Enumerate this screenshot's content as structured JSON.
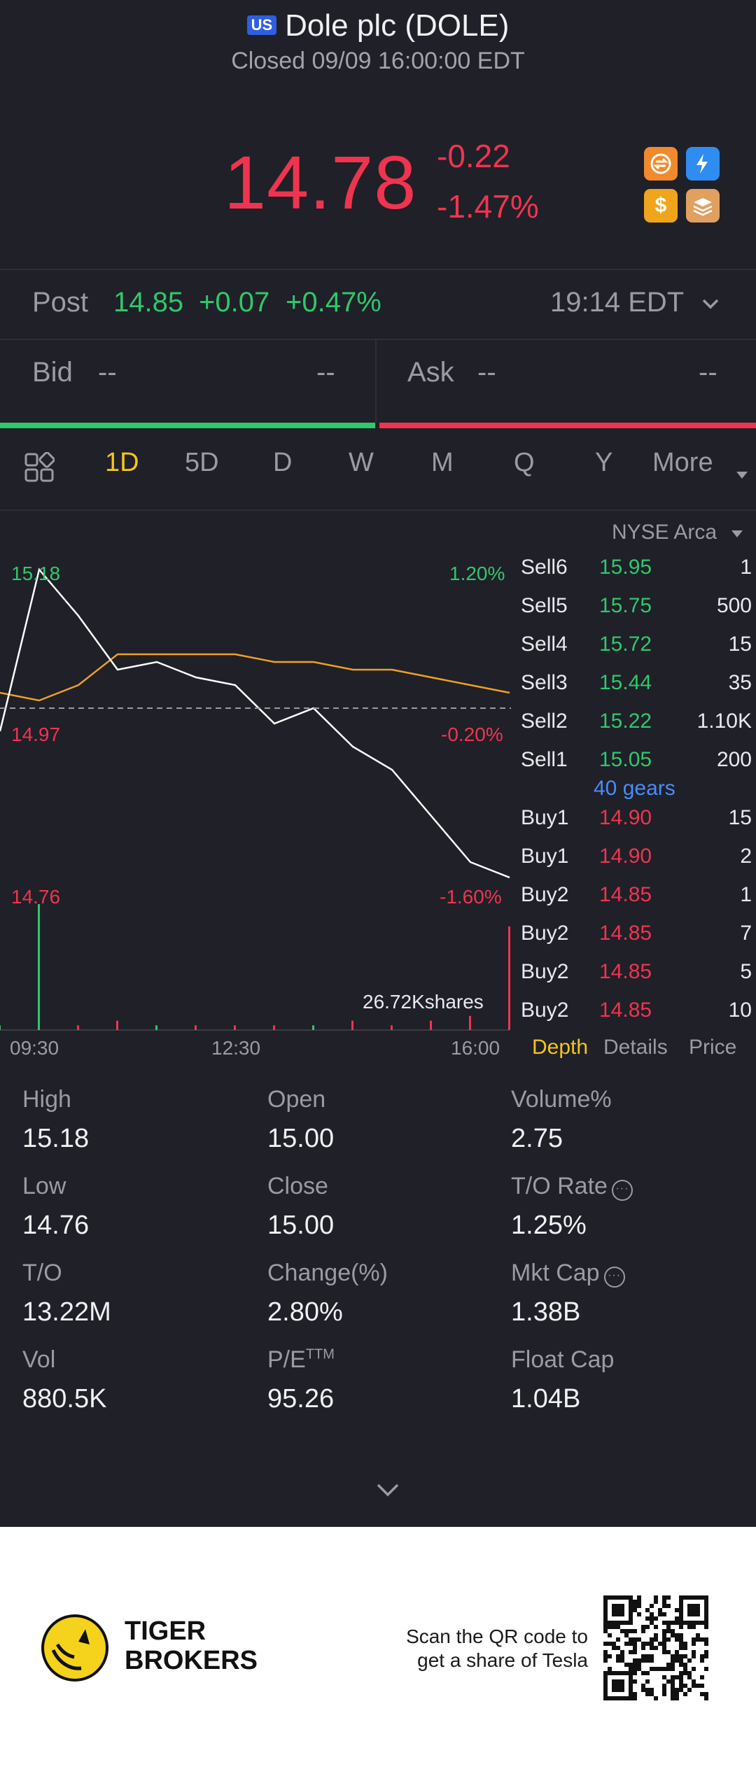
{
  "header": {
    "market_badge": "US",
    "title": "Dole plc (DOLE)",
    "status": "Closed 09/09 16:00:00 EDT"
  },
  "quote": {
    "price": "14.78",
    "change": "-0.22",
    "change_pct": "-1.47%"
  },
  "feature_icons": [
    "transfer-icon",
    "lightning-icon",
    "dollar-icon",
    "stack-icon"
  ],
  "post_market": {
    "label": "Post",
    "price": "14.85",
    "change": "+0.07",
    "change_pct": "+0.47%",
    "time": "19:14 EDT"
  },
  "bid": {
    "label": "Bid",
    "price": "--",
    "size": "--"
  },
  "ask": {
    "label": "Ask",
    "price": "--",
    "size": "--"
  },
  "bid_ask_ratio": 0.5,
  "tabs": [
    "1D",
    "5D",
    "D",
    "W",
    "M",
    "Q",
    "Y",
    "More"
  ],
  "active_tab": "1D",
  "exchange": "NYSE Arca",
  "chart_labels": {
    "high": "15.18",
    "high_pct": "1.20%",
    "mid": "14.97",
    "mid_pct": "-0.20%",
    "low": "14.76",
    "low_pct": "-1.60%",
    "volume": "26.72Kshares",
    "time_start": "09:30",
    "time_mid": "12:30",
    "time_end": "16:00"
  },
  "chart_data": {
    "type": "line",
    "x": [
      "09:30",
      "10:00",
      "10:30",
      "11:00",
      "11:30",
      "12:00",
      "12:30",
      "13:00",
      "13:30",
      "14:00",
      "14:30",
      "15:00",
      "15:30",
      "16:00"
    ],
    "series": [
      {
        "name": "",
        "values": [
          14.97,
          15.18,
          15.12,
          15.05,
          15.06,
          15.04,
          15.03,
          14.98,
          15.0,
          14.95,
          14.92,
          14.86,
          14.8,
          14.78
        ]
      },
      {
        "name": "",
        "values": [
          15.02,
          15.01,
          15.03,
          15.07,
          15.07,
          15.07,
          15.07,
          15.06,
          15.06,
          15.05,
          15.05,
          15.04,
          15.03,
          15.02
        ]
      }
    ],
    "ylim": [
      14.76,
      15.18
    ],
    "volume": [
      1,
      26.72,
      1,
      2,
      1,
      1,
      1,
      1,
      1,
      2,
      1,
      2,
      3,
      22
    ]
  },
  "order_book": {
    "sell": [
      {
        "label": "Sell6",
        "price": "15.95",
        "qty": "1"
      },
      {
        "label": "Sell5",
        "price": "15.75",
        "qty": "500"
      },
      {
        "label": "Sell4",
        "price": "15.72",
        "qty": "15"
      },
      {
        "label": "Sell3",
        "price": "15.44",
        "qty": "35"
      },
      {
        "label": "Sell2",
        "price": "15.22",
        "qty": "1.10K"
      },
      {
        "label": "Sell1",
        "price": "15.05",
        "qty": "200"
      }
    ],
    "gears": "40 gears",
    "buy": [
      {
        "label": "Buy1",
        "price": "14.90",
        "qty": "15"
      },
      {
        "label": "Buy1",
        "price": "14.90",
        "qty": "2"
      },
      {
        "label": "Buy2",
        "price": "14.85",
        "qty": "1"
      },
      {
        "label": "Buy2",
        "price": "14.85",
        "qty": "7"
      },
      {
        "label": "Buy2",
        "price": "14.85",
        "qty": "5"
      },
      {
        "label": "Buy2",
        "price": "14.85",
        "qty": "10"
      }
    ],
    "tabs": [
      "Depth",
      "Details",
      "Price"
    ]
  },
  "stats": [
    {
      "label": "High",
      "value": "15.18"
    },
    {
      "label": "Open",
      "value": "15.00"
    },
    {
      "label": "Volume%",
      "value": "2.75"
    },
    {
      "label": "Low",
      "value": "14.76"
    },
    {
      "label": "Close",
      "value": "15.00"
    },
    {
      "label": "T/O Rate",
      "value": "1.25%"
    },
    {
      "label": "T/O",
      "value": "13.22M"
    },
    {
      "label": "Change(%)",
      "value": "2.80%"
    },
    {
      "label": "Mkt Cap",
      "value": "1.38B"
    },
    {
      "label": "Vol",
      "value": "880.5K"
    },
    {
      "label": "P/E",
      "value": "95.26"
    },
    {
      "label": "Float Cap",
      "value": "1.04B"
    }
  ],
  "pe_sup": "TTM",
  "footer": {
    "brand_line1": "TIGER",
    "brand_line2": "BROKERS",
    "scan_line1": "Scan the QR code to",
    "scan_line2": "get a share of Tesla"
  },
  "colors": {
    "up": "#2fc86b",
    "down": "#f0344f",
    "accent": "#f5c518",
    "avg_line": "#f0a020"
  }
}
